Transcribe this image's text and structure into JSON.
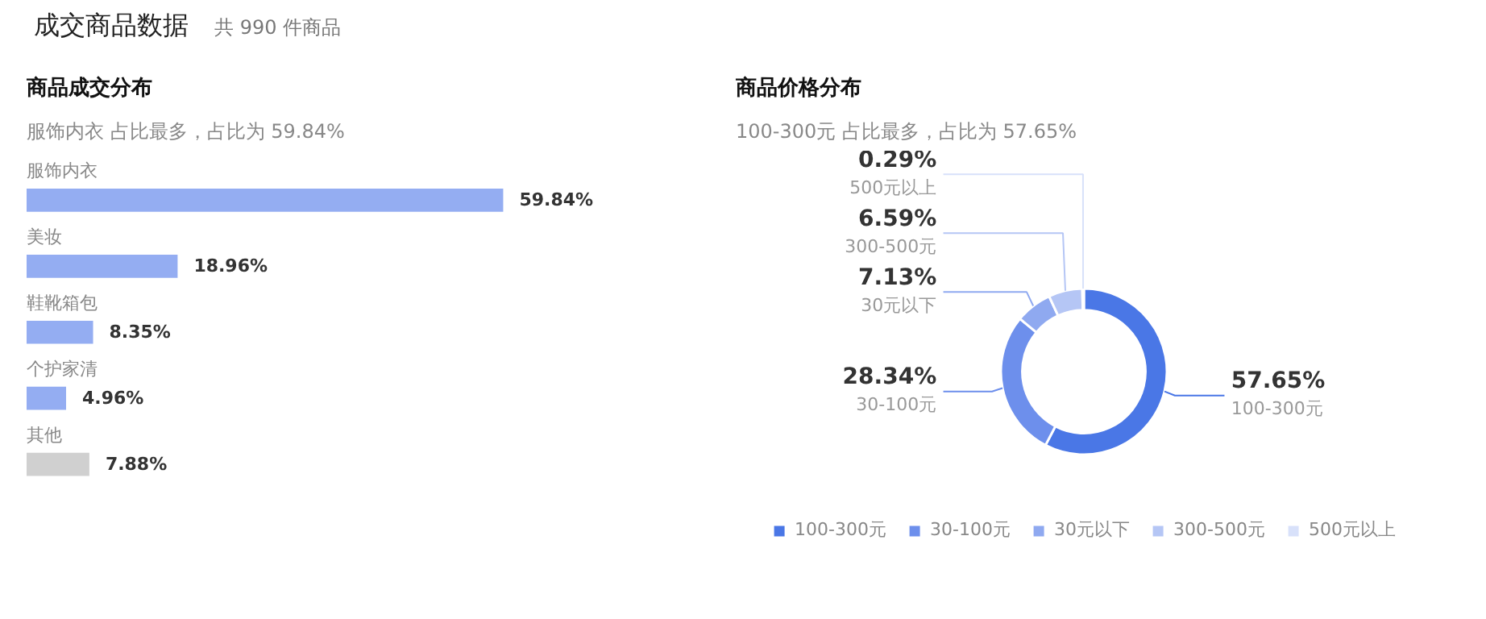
{
  "chart_data": [
    {
      "type": "other",
      "title": "成交商品数据",
      "subtitle": "共 990 件商品"
    },
    {
      "type": "bar",
      "orientation": "horizontal",
      "title": "商品成交分布",
      "subtitle": "服饰内衣 占比最多，占比为 59.84%",
      "categories": [
        "服饰内衣",
        "美妆",
        "鞋靴箱包",
        "个护家清",
        "其他"
      ],
      "values": [
        59.84,
        18.96,
        8.35,
        4.96,
        7.88
      ],
      "value_labels": [
        "59.84%",
        "18.96%",
        "8.35%",
        "4.96%",
        "7.88%"
      ],
      "colors": [
        "#94adf2",
        "#94adf2",
        "#94adf2",
        "#94adf2",
        "#d0d0d0"
      ]
    },
    {
      "type": "donut",
      "title": "商品价格分布",
      "subtitle": "100-300元 占比最多，占比为 57.65%",
      "categories": [
        "100-300元",
        "30-100元",
        "30元以下",
        "300-500元",
        "500元以上"
      ],
      "values": [
        57.65,
        28.34,
        7.13,
        6.59,
        0.29
      ],
      "value_labels": [
        "57.65%",
        "28.34%",
        "7.13%",
        "6.59%",
        "0.29%"
      ],
      "colors": [
        "#4a77e6",
        "#6d8fec",
        "#8fa9f0",
        "#b5c6f5",
        "#d8e1fa"
      ],
      "legend": "bottom"
    }
  ]
}
